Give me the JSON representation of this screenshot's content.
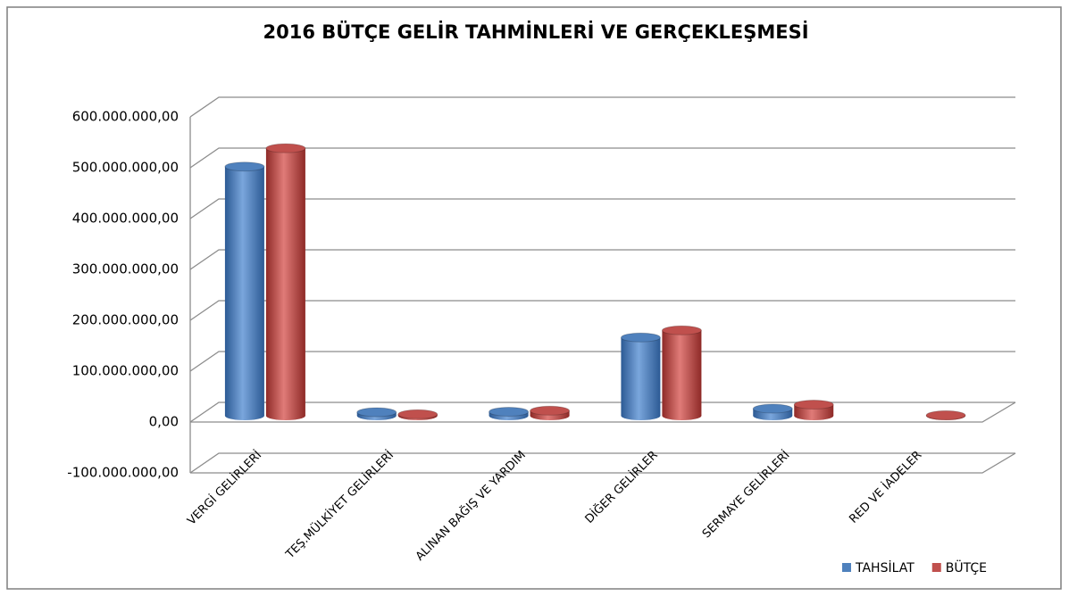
{
  "chart_data": {
    "type": "bar3d",
    "title": "2016 BÜTÇE GELİR TAHMİNLERİ VE GERÇEKLEŞMESİ",
    "categories": [
      "VERGİ GELİRLERİ",
      "TEŞ.MÜLKİYET GELİRLERİ",
      "ALINAN BAĞIŞ VE YARDIM",
      "DİĞER GELİRLER",
      "SERMAYE GELİRLERİ",
      "RED VE İADELER"
    ],
    "series": [
      {
        "name": "TAHSİLAT",
        "color": "#4f81bd",
        "values": [
          490000000,
          7000000,
          8000000,
          154000000,
          14000000,
          null
        ]
      },
      {
        "name": "BÜTÇE",
        "color": "#c0504d",
        "values": [
          526000000,
          3000000,
          10000000,
          168000000,
          22000000,
          1000000
        ]
      }
    ],
    "ylim": [
      -100000000,
      600000000
    ],
    "yticks": [
      {
        "value": -100000000,
        "label": "-100.000.000,00"
      },
      {
        "value": 0,
        "label": "0,00"
      },
      {
        "value": 100000000,
        "label": "100.000.000,00"
      },
      {
        "value": 200000000,
        "label": "200.000.000,00"
      },
      {
        "value": 300000000,
        "label": "300.000.000,00"
      },
      {
        "value": 400000000,
        "label": "400.000.000,00"
      },
      {
        "value": 500000000,
        "label": "500.000.000,00"
      },
      {
        "value": 600000000,
        "label": "600.000.000,00"
      }
    ],
    "grid": true,
    "legend": "bottom-right"
  }
}
